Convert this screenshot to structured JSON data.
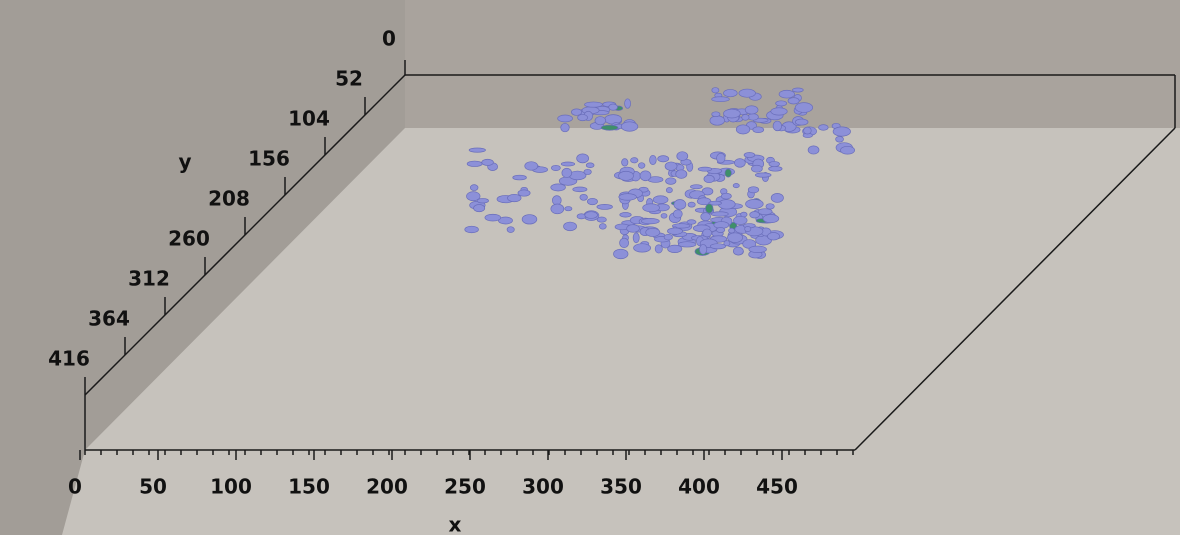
{
  "y_axis": {
    "label": "y",
    "ticks": [
      0,
      52,
      104,
      156,
      208,
      260,
      312,
      364,
      416
    ]
  },
  "x_axis": {
    "label": "x",
    "ticks": [
      0,
      50,
      100,
      150,
      200,
      250,
      300,
      350,
      400,
      450
    ]
  }
}
